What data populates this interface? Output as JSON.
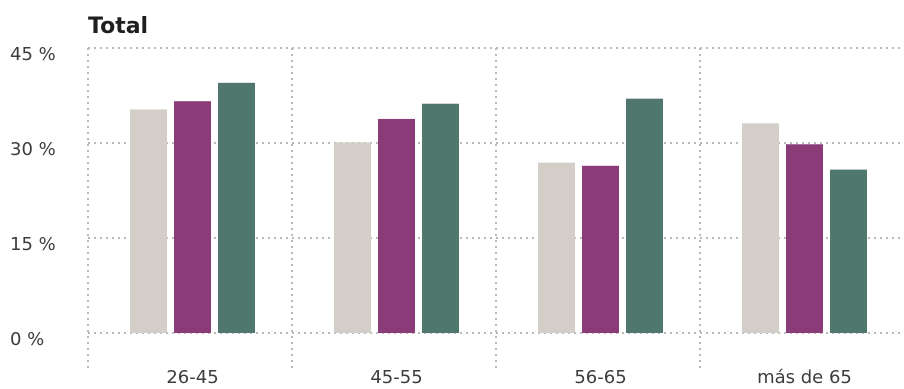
{
  "chart_data": {
    "type": "bar",
    "title": "Total",
    "categories": [
      "26-45",
      "45-55",
      "56-65",
      "más de 65"
    ],
    "series": [
      {
        "color": "#d3cfc8",
        "values": [
          35.3,
          30.1,
          26.9,
          33.1
        ]
      },
      {
        "color": "#8a3b78",
        "values": [
          36.6,
          33.8,
          26.4,
          29.8
        ]
      },
      {
        "color": "#4f776d",
        "values": [
          39.5,
          36.2,
          37.0,
          25.8
        ]
      }
    ],
    "yticks": [
      0,
      15,
      30,
      45
    ],
    "ytick_labels": [
      "0 %",
      "15 %",
      "30 %",
      "45 %"
    ],
    "xlabel": "",
    "ylabel": "",
    "ylim": [
      0,
      45
    ],
    "grid": true,
    "legend": false
  }
}
